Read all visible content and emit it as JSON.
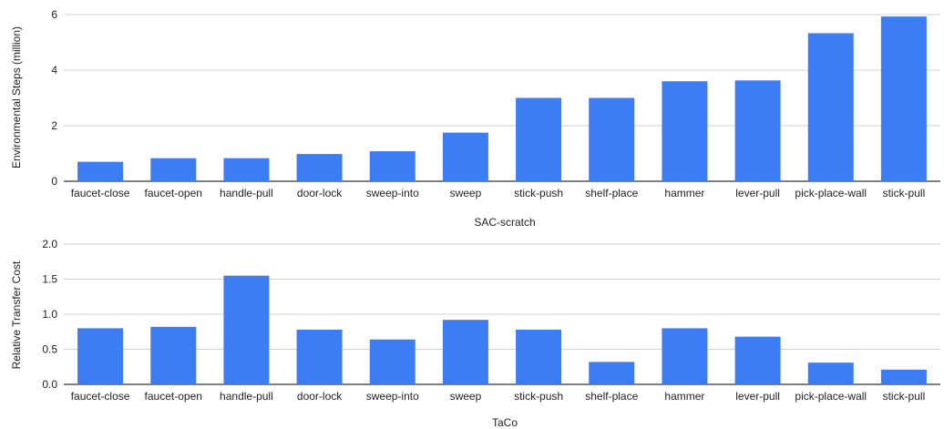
{
  "chart_data": [
    {
      "type": "bar",
      "categories": [
        "faucet-close",
        "faucet-open",
        "handle-pull",
        "door-lock",
        "sweep-into",
        "sweep",
        "stick-push",
        "shelf-place",
        "hammer",
        "lever-pull",
        "pick-place-wall",
        "stick-pull"
      ],
      "values": [
        0.7,
        0.83,
        0.83,
        0.98,
        1.08,
        1.75,
        3.0,
        3.0,
        3.6,
        3.63,
        5.33,
        5.93
      ],
      "xlabel": "SAC-scratch",
      "ylabel": "Environmental Steps (million)",
      "ylim": [
        0,
        6
      ],
      "yticks": [
        "0",
        "2",
        "4",
        "6"
      ],
      "grid": true,
      "bar_color": "#3d7df3"
    },
    {
      "type": "bar",
      "categories": [
        "faucet-close",
        "faucet-open",
        "handle-pull",
        "door-lock",
        "sweep-into",
        "sweep",
        "stick-push",
        "shelf-place",
        "hammer",
        "lever-pull",
        "pick-place-wall",
        "stick-pull"
      ],
      "values": [
        0.8,
        0.82,
        1.55,
        0.78,
        0.64,
        0.92,
        0.78,
        0.32,
        0.8,
        0.68,
        0.31,
        0.21
      ],
      "xlabel": "TaCo",
      "ylabel": "Relative Transfer Cost",
      "ylim": [
        0,
        2.0
      ],
      "yticks": [
        "0.0",
        "0.5",
        "1.0",
        "1.5",
        "2.0"
      ],
      "grid": true,
      "bar_color": "#3d7df3"
    }
  ]
}
